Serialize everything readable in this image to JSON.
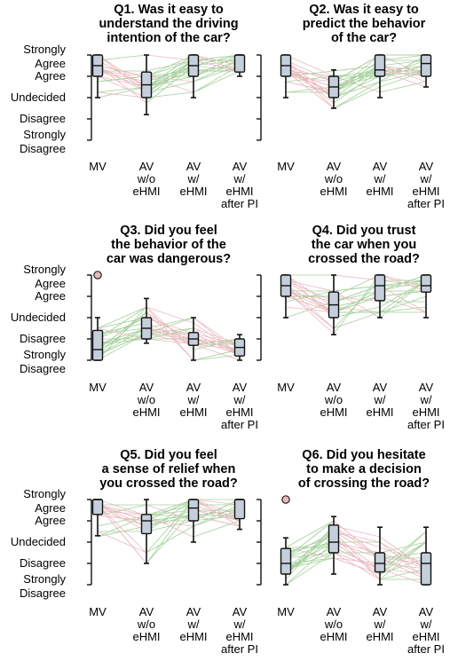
{
  "chart_data": {
    "type": "boxplot",
    "y_scale": {
      "min": 1,
      "max": 5
    },
    "y_levels": [
      {
        "value": 5,
        "lines": [
          "Strongly",
          "Agree"
        ]
      },
      {
        "value": 4,
        "lines": [
          "Agree"
        ]
      },
      {
        "value": 3,
        "lines": [
          "Undecided"
        ]
      },
      {
        "value": 2,
        "lines": [
          "Disagree"
        ]
      },
      {
        "value": 1,
        "lines": [
          "Strongly",
          "Disagree"
        ]
      }
    ],
    "conditions": [
      {
        "lines": [
          "MV"
        ]
      },
      {
        "lines": [
          "AV",
          "w/o",
          "eHMI"
        ]
      },
      {
        "lines": [
          "AV",
          "w/",
          "eHMI"
        ]
      },
      {
        "lines": [
          "AV",
          "w/",
          "eHMI",
          "after PI"
        ]
      }
    ],
    "line_colors": {
      "increase": "#5aa84a",
      "decrease": "#d9808a"
    },
    "panels": [
      {
        "title_lines": [
          "Q1. Was it easy to",
          "understand the driving",
          "intention of the car?"
        ],
        "boxes": [
          {
            "whislo": 3.0,
            "q1": 4.0,
            "med": 4.5,
            "q3": 5.0,
            "whishi": 5.0
          },
          {
            "whislo": 2.2,
            "q1": 3.0,
            "med": 3.6,
            "q3": 4.2,
            "whishi": 5.0
          },
          {
            "whislo": 3.0,
            "q1": 4.0,
            "med": 4.5,
            "q3": 5.0,
            "whishi": 5.0
          },
          {
            "whislo": 4.0,
            "q1": 4.2,
            "med": 5.0,
            "q3": 5.0,
            "whishi": 5.0
          }
        ],
        "outliers": []
      },
      {
        "title_lines": [
          "Q2. Was it easy to",
          "predict the behavior",
          "of the car?"
        ],
        "boxes": [
          {
            "whislo": 3.0,
            "q1": 4.0,
            "med": 4.5,
            "q3": 5.0,
            "whishi": 5.0
          },
          {
            "whislo": 2.5,
            "q1": 3.0,
            "med": 3.5,
            "q3": 4.0,
            "whishi": 4.3
          },
          {
            "whislo": 3.0,
            "q1": 4.0,
            "med": 4.3,
            "q3": 5.0,
            "whishi": 5.0
          },
          {
            "whislo": 3.5,
            "q1": 4.0,
            "med": 4.6,
            "q3": 5.0,
            "whishi": 5.0
          }
        ],
        "outliers": []
      },
      {
        "title_lines": [
          "Q3. Did you feel",
          "the behavior of the",
          "car was dangerous?"
        ],
        "boxes": [
          {
            "whislo": 1.0,
            "q1": 1.0,
            "med": 1.5,
            "q3": 2.4,
            "whishi": 3.0
          },
          {
            "whislo": 1.8,
            "q1": 2.0,
            "med": 2.5,
            "q3": 3.0,
            "whishi": 3.9
          },
          {
            "whislo": 1.0,
            "q1": 1.7,
            "med": 2.0,
            "q3": 2.3,
            "whishi": 3.0
          },
          {
            "whislo": 1.0,
            "q1": 1.2,
            "med": 1.6,
            "q3": 2.0,
            "whishi": 2.2
          }
        ],
        "outliers": [
          {
            "condition": 0,
            "value": 5.0
          }
        ]
      },
      {
        "title_lines": [
          "Q4. Did you trust",
          "the car when you",
          "crossed the road?"
        ],
        "boxes": [
          {
            "whislo": 3.0,
            "q1": 4.0,
            "med": 4.5,
            "q3": 5.0,
            "whishi": 5.0
          },
          {
            "whislo": 2.2,
            "q1": 3.0,
            "med": 3.6,
            "q3": 4.2,
            "whishi": 5.0
          },
          {
            "whislo": 3.0,
            "q1": 3.8,
            "med": 4.5,
            "q3": 5.0,
            "whishi": 5.0
          },
          {
            "whislo": 3.0,
            "q1": 4.2,
            "med": 4.5,
            "q3": 5.0,
            "whishi": 5.0
          }
        ],
        "outliers": []
      },
      {
        "title_lines": [
          "Q5. Did you feel",
          "a sense of relief when",
          "you crossed the road?"
        ],
        "boxes": [
          {
            "whislo": 3.3,
            "q1": 4.3,
            "med": 5.0,
            "q3": 5.0,
            "whishi": 5.0
          },
          {
            "whislo": 2.0,
            "q1": 3.4,
            "med": 4.0,
            "q3": 4.3,
            "whishi": 5.0
          },
          {
            "whislo": 3.0,
            "q1": 4.0,
            "med": 4.6,
            "q3": 5.0,
            "whishi": 5.0
          },
          {
            "whislo": 3.6,
            "q1": 4.1,
            "med": 5.0,
            "q3": 5.0,
            "whishi": 5.0
          }
        ],
        "outliers": []
      },
      {
        "title_lines": [
          "Q6. Did you hesitate",
          "to make a decision",
          "of crossing the road?"
        ],
        "boxes": [
          {
            "whislo": 1.0,
            "q1": 1.5,
            "med": 2.0,
            "q3": 2.7,
            "whishi": 3.2
          },
          {
            "whislo": 1.5,
            "q1": 2.5,
            "med": 3.0,
            "q3": 3.8,
            "whishi": 4.2
          },
          {
            "whislo": 1.0,
            "q1": 1.6,
            "med": 2.0,
            "q3": 2.5,
            "whishi": 3.7
          },
          {
            "whislo": 1.0,
            "q1": 1.0,
            "med": 2.0,
            "q3": 2.5,
            "whishi": 3.7
          }
        ],
        "outliers": [
          {
            "condition": 0,
            "value": 5.0
          }
        ]
      }
    ]
  }
}
